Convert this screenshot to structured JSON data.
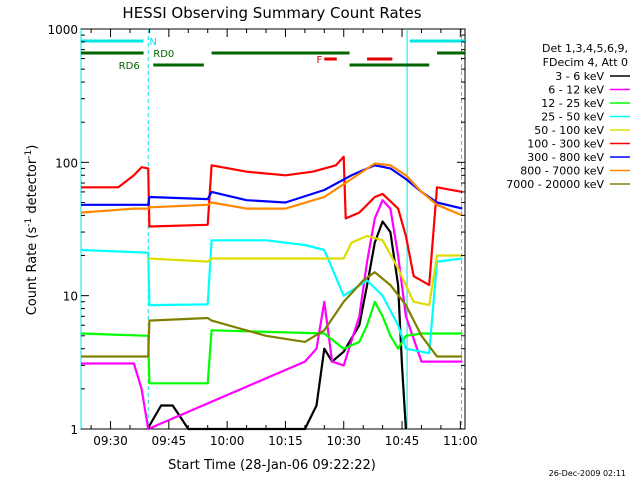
{
  "chart_data": {
    "type": "line",
    "title": "HESSI Observing Summary Count Rates",
    "xlabel": "Start Time (28-Jan-06 09:22:22)",
    "ylabel": "Count Rate (s⁻¹ detector⁻¹)",
    "ylabel_base": "Count Rate (s",
    "ylabel_sup1": "-1",
    "ylabel_mid": " detector",
    "ylabel_sup2": "-1",
    "ylabel_end": ")",
    "yscale": "log",
    "ylim": [
      1,
      1000
    ],
    "xlim_minutes": [
      82.4,
      181.2
    ],
    "x_ticks": [
      {
        "minute": 90,
        "label": "09:30"
      },
      {
        "minute": 105,
        "label": "09:45"
      },
      {
        "minute": 120,
        "label": "10:00"
      },
      {
        "minute": 135,
        "label": "10:15"
      },
      {
        "minute": 150,
        "label": "10:30"
      },
      {
        "minute": 165,
        "label": "10:45"
      },
      {
        "minute": 180,
        "label": "11:00"
      }
    ],
    "y_ticks": [
      {
        "value": 1,
        "label": "1"
      },
      {
        "value": 10,
        "label": "10"
      },
      {
        "value": 100,
        "label": "100"
      },
      {
        "value": 1000,
        "label": "1000"
      }
    ],
    "legend_header": [
      "Det 1,3,4,5,6,9,",
      "FDecim 4, Att 0"
    ],
    "footer_date": "26-Dec-2009 02:11",
    "grid": false,
    "legend_position": "right",
    "segments": [
      {
        "label": "N",
        "color": "#00e5e5",
        "start": 82.4,
        "end": 98.5,
        "row": 0,
        "label_at": 100
      },
      {
        "label": "",
        "color": "#00e5e5",
        "start": 167,
        "end": 181.2,
        "row": 0
      },
      {
        "label": "RD0",
        "color": "#006400",
        "start": 82.4,
        "end": 98.5,
        "row": 1,
        "label_at": 101
      },
      {
        "label": "",
        "color": "#006400",
        "start": 116,
        "end": 151.5,
        "row": 1
      },
      {
        "label": "",
        "color": "#006400",
        "start": 174,
        "end": 181.2,
        "row": 1
      },
      {
        "label": "RD6",
        "color": "#006400",
        "start": 101,
        "end": 114,
        "row": 2,
        "label_at": 97.5,
        "label_side": "left"
      },
      {
        "label": "",
        "color": "#006400",
        "start": 151.5,
        "end": 172,
        "row": 2
      },
      {
        "label": "F",
        "color": "#e00000",
        "start": 145,
        "end": 148.2,
        "row": 1.5,
        "label_at": 143
      },
      {
        "label": "",
        "color": "#e00000",
        "start": 156,
        "end": 162.5,
        "row": 1.5
      }
    ],
    "vlines_solid": [
      82.4,
      166.3
    ],
    "vlines_dashed": [
      99.7,
      180.3
    ],
    "series": [
      {
        "name": "3 - 6 keV",
        "color": "#000000",
        "points": [
          [
            99.5,
            1
          ],
          [
            103,
            1.5
          ],
          [
            106,
            1.5
          ],
          [
            110,
            1
          ],
          [
            140,
            1
          ],
          [
            143,
            1.5
          ],
          [
            145,
            4
          ],
          [
            147,
            3.2
          ],
          [
            150,
            3.8
          ],
          [
            154,
            6
          ],
          [
            156,
            12
          ],
          [
            158,
            25
          ],
          [
            160,
            36
          ],
          [
            162,
            30
          ],
          [
            164,
            12
          ],
          [
            165,
            3
          ],
          [
            166,
            1
          ]
        ]
      },
      {
        "name": "6 - 12 keV",
        "color": "#ff00ff",
        "points": [
          [
            82.4,
            3.1
          ],
          [
            96,
            3.1
          ],
          [
            98,
            2
          ],
          [
            99.7,
            1
          ],
          [
            140,
            3.2
          ],
          [
            143,
            4
          ],
          [
            145,
            9
          ],
          [
            147,
            3.2
          ],
          [
            150,
            3
          ],
          [
            154,
            7
          ],
          [
            156,
            18
          ],
          [
            158,
            38
          ],
          [
            160,
            52
          ],
          [
            162,
            45
          ],
          [
            164,
            20
          ],
          [
            166,
            7
          ],
          [
            170,
            3.2
          ],
          [
            180.5,
            3.2
          ]
        ]
      },
      {
        "name": "12 - 25 keV",
        "color": "#00ff00",
        "points": [
          [
            82.4,
            5.2
          ],
          [
            99.7,
            5
          ],
          [
            100,
            2.2
          ],
          [
            115,
            2.2
          ],
          [
            116,
            5.5
          ],
          [
            145,
            5.2
          ],
          [
            150,
            4
          ],
          [
            154,
            4.5
          ],
          [
            156,
            6
          ],
          [
            158,
            9
          ],
          [
            160,
            7
          ],
          [
            162,
            5
          ],
          [
            164,
            4
          ],
          [
            166,
            5
          ],
          [
            170,
            5.2
          ],
          [
            180.5,
            5.2
          ]
        ]
      },
      {
        "name": "25 - 50 keV",
        "color": "#00ffff",
        "points": [
          [
            82.4,
            22
          ],
          [
            99.7,
            21
          ],
          [
            100,
            8.5
          ],
          [
            115,
            8.6
          ],
          [
            116,
            26
          ],
          [
            130,
            26
          ],
          [
            140,
            24
          ],
          [
            145,
            22
          ],
          [
            150,
            10
          ],
          [
            156,
            13
          ],
          [
            160,
            10
          ],
          [
            164,
            6
          ],
          [
            166,
            4
          ],
          [
            172,
            3.7
          ],
          [
            174,
            18
          ],
          [
            180.5,
            19
          ]
        ]
      },
      {
        "name": "50 - 100 keV",
        "color": "#dddd00",
        "points": [
          [
            99.7,
            19
          ],
          [
            115,
            18
          ],
          [
            116,
            19
          ],
          [
            150,
            19
          ],
          [
            152,
            25
          ],
          [
            156,
            28
          ],
          [
            160,
            26
          ],
          [
            164,
            16
          ],
          [
            168,
            9
          ],
          [
            172,
            8.5
          ],
          [
            174,
            20
          ],
          [
            180.5,
            20
          ]
        ]
      },
      {
        "name": "100 - 300 keV",
        "color": "#ff0000",
        "points": [
          [
            82.4,
            65
          ],
          [
            92,
            65
          ],
          [
            96,
            80
          ],
          [
            98,
            92
          ],
          [
            99.7,
            90
          ],
          [
            100,
            33
          ],
          [
            115,
            34
          ],
          [
            116,
            95
          ],
          [
            125,
            85
          ],
          [
            135,
            80
          ],
          [
            142,
            85
          ],
          [
            148,
            95
          ],
          [
            150,
            110
          ],
          [
            150.5,
            38
          ],
          [
            154,
            42
          ],
          [
            158,
            55
          ],
          [
            160,
            58
          ],
          [
            164,
            45
          ],
          [
            166,
            28
          ],
          [
            168,
            14
          ],
          [
            172,
            12
          ],
          [
            174,
            65
          ],
          [
            180.5,
            60
          ]
        ]
      },
      {
        "name": "300 - 800 keV",
        "color": "#0000ff",
        "points": [
          [
            82.4,
            48
          ],
          [
            99.7,
            48
          ],
          [
            100,
            55
          ],
          [
            115,
            53
          ],
          [
            116,
            60
          ],
          [
            125,
            52
          ],
          [
            135,
            50
          ],
          [
            145,
            62
          ],
          [
            152,
            80
          ],
          [
            158,
            95
          ],
          [
            162,
            90
          ],
          [
            166,
            75
          ],
          [
            170,
            60
          ],
          [
            174,
            50
          ],
          [
            180.5,
            45
          ]
        ]
      },
      {
        "name": "800 - 7000 keV",
        "color": "#ff8800",
        "points": [
          [
            82.4,
            42
          ],
          [
            96,
            45
          ],
          [
            99.7,
            45
          ],
          [
            100,
            46
          ],
          [
            115,
            48
          ],
          [
            116,
            50
          ],
          [
            125,
            45
          ],
          [
            135,
            45
          ],
          [
            145,
            55
          ],
          [
            152,
            75
          ],
          [
            158,
            98
          ],
          [
            162,
            95
          ],
          [
            166,
            80
          ],
          [
            170,
            60
          ],
          [
            174,
            48
          ],
          [
            180.5,
            40
          ]
        ]
      },
      {
        "name": "7000 - 20000 keV",
        "color": "#808000",
        "points": [
          [
            82.4,
            3.5
          ],
          [
            99.7,
            3.5
          ],
          [
            100,
            6.5
          ],
          [
            115,
            6.8
          ],
          [
            116,
            6.5
          ],
          [
            130,
            5
          ],
          [
            140,
            4.5
          ],
          [
            145,
            5.5
          ],
          [
            150,
            9
          ],
          [
            155,
            13
          ],
          [
            158,
            15
          ],
          [
            162,
            12
          ],
          [
            166,
            8.5
          ],
          [
            170,
            5
          ],
          [
            174,
            3.5
          ],
          [
            180.5,
            3.5
          ]
        ]
      }
    ]
  }
}
